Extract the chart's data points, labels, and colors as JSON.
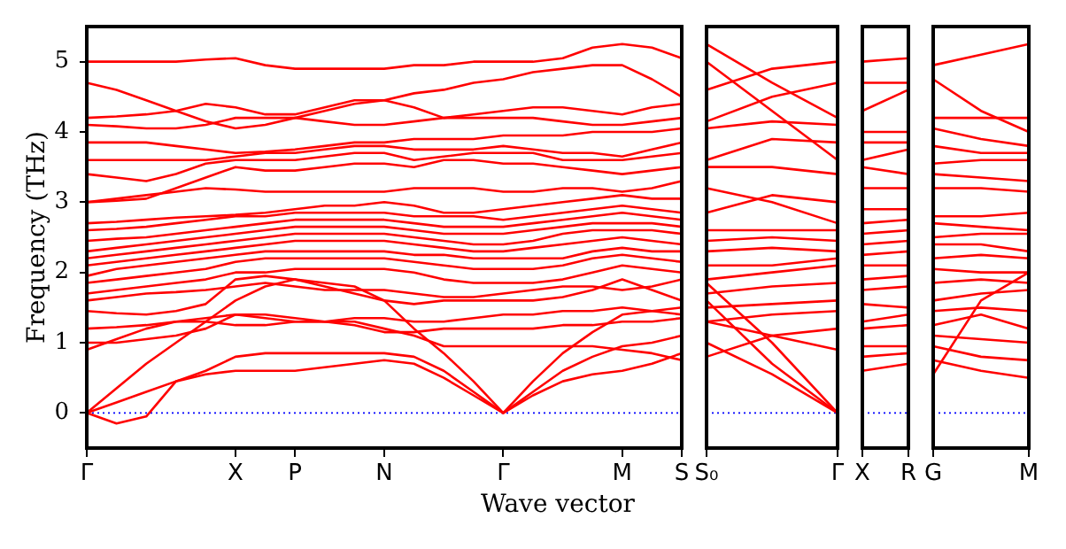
{
  "chart_data": [
    {
      "type": "line",
      "xlabel": "Wave vector",
      "ylabel": "Frequency (THz)",
      "marker": "none",
      "categories": [
        "Γ",
        null,
        null,
        null,
        null,
        "X",
        null,
        "P",
        null,
        null,
        "N",
        null,
        null,
        null,
        "Γ",
        null,
        null,
        null,
        "M",
        null,
        "S"
      ],
      "ylim": [
        -0.5,
        5.5
      ],
      "yticks": [
        0,
        1,
        2,
        3,
        4,
        5
      ],
      "ref_lines": [
        {
          "axis": "y",
          "value": 0,
          "color": "#0000ff",
          "line_style": "dotted"
        }
      ],
      "series": [
        {
          "color": "#ff0000",
          "values": [
            0,
            -0.15,
            -0.05,
            0.45,
            0.55,
            0.6,
            0.6,
            0.6,
            0.65,
            0.7,
            0.75,
            0.7,
            0.5,
            0.25,
            0,
            0.25,
            0.45,
            0.55,
            0.6,
            0.7,
            0.85
          ]
        },
        {
          "color": "#ff0000",
          "values": [
            0,
            0.15,
            0.3,
            0.45,
            0.6,
            0.8,
            0.85,
            0.85,
            0.85,
            0.85,
            0.85,
            0.8,
            0.6,
            0.3,
            0,
            0.3,
            0.6,
            0.8,
            0.95,
            1.0,
            1.1
          ]
        },
        {
          "color": "#ff0000",
          "values": [
            0,
            0.35,
            0.7,
            1.0,
            1.3,
            1.6,
            1.8,
            1.9,
            1.85,
            1.8,
            1.6,
            1.2,
            0.85,
            0.45,
            0,
            0.45,
            0.85,
            1.15,
            1.4,
            1.45,
            1.5
          ]
        },
        {
          "color": "#ff0000",
          "values": [
            0.9,
            1.05,
            1.2,
            1.3,
            1.3,
            1.25,
            1.25,
            1.3,
            1.3,
            1.3,
            1.2,
            1.1,
            0.95,
            0.95,
            0.95,
            0.95,
            0.95,
            0.95,
            0.9,
            0.85,
            0.75
          ]
        },
        {
          "color": "#ff0000",
          "values": [
            1.0,
            1.0,
            1.05,
            1.1,
            1.2,
            1.4,
            1.4,
            1.35,
            1.3,
            1.25,
            1.15,
            1.15,
            1.2,
            1.2,
            1.2,
            1.2,
            1.25,
            1.25,
            1.3,
            1.3,
            1.35
          ]
        },
        {
          "color": "#ff0000",
          "values": [
            1.2,
            1.22,
            1.25,
            1.3,
            1.35,
            1.4,
            1.35,
            1.3,
            1.3,
            1.35,
            1.35,
            1.3,
            1.3,
            1.35,
            1.4,
            1.4,
            1.45,
            1.45,
            1.5,
            1.45,
            1.4
          ]
        },
        {
          "color": "#ff0000",
          "values": [
            1.45,
            1.42,
            1.4,
            1.45,
            1.55,
            1.9,
            1.95,
            1.9,
            1.8,
            1.7,
            1.6,
            1.55,
            1.6,
            1.6,
            1.6,
            1.6,
            1.65,
            1.75,
            1.9,
            1.75,
            1.6
          ]
        },
        {
          "color": "#ff0000",
          "values": [
            1.6,
            1.65,
            1.7,
            1.72,
            1.75,
            1.8,
            1.85,
            1.8,
            1.75,
            1.75,
            1.75,
            1.7,
            1.65,
            1.65,
            1.7,
            1.75,
            1.8,
            1.8,
            1.75,
            1.8,
            1.9
          ]
        },
        {
          "color": "#ff0000",
          "values": [
            1.7,
            1.75,
            1.8,
            1.85,
            1.9,
            2.0,
            2.0,
            2.05,
            2.05,
            2.05,
            2.05,
            2.0,
            1.9,
            1.85,
            1.85,
            1.85,
            1.9,
            2.0,
            2.1,
            2.05,
            2.0
          ]
        },
        {
          "color": "#ff0000",
          "values": [
            1.85,
            1.9,
            1.95,
            2.0,
            2.05,
            2.15,
            2.2,
            2.2,
            2.2,
            2.2,
            2.2,
            2.15,
            2.1,
            2.05,
            2.05,
            2.05,
            2.1,
            2.2,
            2.25,
            2.2,
            2.15
          ]
        },
        {
          "color": "#ff0000",
          "values": [
            1.95,
            2.05,
            2.1,
            2.15,
            2.2,
            2.25,
            2.3,
            2.3,
            2.3,
            2.3,
            2.3,
            2.25,
            2.25,
            2.2,
            2.2,
            2.2,
            2.2,
            2.3,
            2.35,
            2.3,
            2.3
          ]
        },
        {
          "color": "#ff0000",
          "values": [
            2.1,
            2.15,
            2.2,
            2.25,
            2.3,
            2.35,
            2.4,
            2.45,
            2.45,
            2.45,
            2.45,
            2.4,
            2.35,
            2.3,
            2.3,
            2.35,
            2.4,
            2.45,
            2.5,
            2.45,
            2.4
          ]
        },
        {
          "color": "#ff0000",
          "values": [
            2.2,
            2.25,
            2.3,
            2.35,
            2.4,
            2.45,
            2.5,
            2.55,
            2.55,
            2.55,
            2.55,
            2.5,
            2.45,
            2.4,
            2.4,
            2.45,
            2.55,
            2.6,
            2.6,
            2.6,
            2.55
          ]
        },
        {
          "color": "#ff0000",
          "values": [
            2.3,
            2.35,
            2.4,
            2.45,
            2.5,
            2.55,
            2.6,
            2.65,
            2.65,
            2.65,
            2.65,
            2.6,
            2.55,
            2.55,
            2.55,
            2.6,
            2.65,
            2.7,
            2.7,
            2.7,
            2.65
          ]
        },
        {
          "color": "#ff0000",
          "values": [
            2.45,
            2.48,
            2.5,
            2.55,
            2.6,
            2.65,
            2.7,
            2.75,
            2.75,
            2.75,
            2.75,
            2.7,
            2.65,
            2.65,
            2.65,
            2.7,
            2.75,
            2.8,
            2.85,
            2.8,
            2.75
          ]
        },
        {
          "color": "#ff0000",
          "values": [
            2.6,
            2.62,
            2.65,
            2.7,
            2.75,
            2.8,
            2.8,
            2.85,
            2.85,
            2.85,
            2.85,
            2.8,
            2.8,
            2.8,
            2.75,
            2.8,
            2.85,
            2.9,
            2.95,
            2.9,
            2.85
          ]
        },
        {
          "color": "#ff0000",
          "values": [
            2.7,
            2.72,
            2.75,
            2.78,
            2.8,
            2.82,
            2.85,
            2.9,
            2.95,
            2.95,
            3.0,
            2.95,
            2.85,
            2.85,
            2.9,
            2.95,
            3.0,
            3.05,
            3.1,
            3.05,
            3.05
          ]
        },
        {
          "color": "#ff0000",
          "values": [
            3.0,
            3.05,
            3.1,
            3.15,
            3.2,
            3.18,
            3.15,
            3.15,
            3.15,
            3.15,
            3.15,
            3.2,
            3.2,
            3.2,
            3.15,
            3.15,
            3.2,
            3.2,
            3.15,
            3.2,
            3.3
          ]
        },
        {
          "color": "#ff0000",
          "values": [
            3.0,
            3.02,
            3.05,
            3.2,
            3.35,
            3.5,
            3.45,
            3.45,
            3.5,
            3.55,
            3.55,
            3.5,
            3.6,
            3.6,
            3.55,
            3.55,
            3.5,
            3.45,
            3.4,
            3.45,
            3.5
          ]
        },
        {
          "color": "#ff0000",
          "values": [
            3.4,
            3.35,
            3.3,
            3.4,
            3.55,
            3.6,
            3.6,
            3.6,
            3.65,
            3.7,
            3.7,
            3.6,
            3.65,
            3.7,
            3.7,
            3.7,
            3.6,
            3.6,
            3.6,
            3.65,
            3.7
          ]
        },
        {
          "color": "#ff0000",
          "values": [
            3.6,
            3.6,
            3.6,
            3.6,
            3.6,
            3.65,
            3.7,
            3.7,
            3.75,
            3.8,
            3.8,
            3.75,
            3.75,
            3.75,
            3.8,
            3.75,
            3.7,
            3.7,
            3.65,
            3.75,
            3.85
          ]
        },
        {
          "color": "#ff0000",
          "values": [
            3.85,
            3.85,
            3.85,
            3.8,
            3.75,
            3.7,
            3.72,
            3.75,
            3.8,
            3.85,
            3.85,
            3.9,
            3.9,
            3.9,
            3.95,
            3.95,
            3.95,
            4.0,
            4.0,
            4.0,
            4.05
          ]
        },
        {
          "color": "#ff0000",
          "values": [
            4.1,
            4.08,
            4.05,
            4.05,
            4.1,
            4.2,
            4.2,
            4.2,
            4.15,
            4.1,
            4.1,
            4.15,
            4.2,
            4.2,
            4.2,
            4.2,
            4.15,
            4.1,
            4.1,
            4.15,
            4.2
          ]
        },
        {
          "color": "#ff0000",
          "values": [
            4.2,
            4.22,
            4.25,
            4.3,
            4.4,
            4.35,
            4.25,
            4.25,
            4.35,
            4.45,
            4.45,
            4.35,
            4.2,
            4.25,
            4.3,
            4.35,
            4.35,
            4.3,
            4.25,
            4.35,
            4.4
          ]
        },
        {
          "color": "#ff0000",
          "values": [
            4.7,
            4.6,
            4.45,
            4.3,
            4.15,
            4.05,
            4.1,
            4.2,
            4.3,
            4.4,
            4.45,
            4.55,
            4.6,
            4.7,
            4.75,
            4.85,
            4.9,
            4.95,
            4.95,
            4.75,
            4.5
          ]
        },
        {
          "color": "#ff0000",
          "values": [
            5.0,
            5.0,
            5.0,
            5.0,
            5.03,
            5.05,
            4.95,
            4.9,
            4.9,
            4.9,
            4.9,
            4.95,
            4.95,
            5.0,
            5.0,
            5.0,
            5.05,
            5.2,
            5.25,
            5.2,
            5.05
          ]
        }
      ]
    },
    {
      "type": "line",
      "marker": "none",
      "tick_labels": "x",
      "categories": [
        "S₀",
        null,
        "Γ"
      ],
      "ylim": [
        -0.5,
        5.5
      ],
      "yticks": [
        0,
        1,
        2,
        3,
        4,
        5
      ],
      "ref_lines": [
        {
          "axis": "y",
          "value": 0,
          "color": "#0000ff",
          "line_style": "dotted"
        }
      ],
      "series": [
        {
          "color": "#ff0000",
          "values": [
            5.25,
            4.7,
            4.2
          ]
        },
        {
          "color": "#ff0000",
          "values": [
            5.0,
            4.3,
            3.6
          ]
        },
        {
          "color": "#ff0000",
          "values": [
            4.6,
            4.9,
            5.0
          ]
        },
        {
          "color": "#ff0000",
          "values": [
            4.15,
            4.5,
            4.7
          ]
        },
        {
          "color": "#ff0000",
          "values": [
            4.05,
            4.15,
            4.1
          ]
        },
        {
          "color": "#ff0000",
          "values": [
            3.6,
            3.9,
            3.85
          ]
        },
        {
          "color": "#ff0000",
          "values": [
            3.5,
            3.5,
            3.4
          ]
        },
        {
          "color": "#ff0000",
          "values": [
            3.2,
            3.0,
            2.7
          ]
        },
        {
          "color": "#ff0000",
          "values": [
            2.85,
            3.1,
            3.0
          ]
        },
        {
          "color": "#ff0000",
          "values": [
            2.6,
            2.6,
            2.6
          ]
        },
        {
          "color": "#ff0000",
          "values": [
            2.45,
            2.5,
            2.45
          ]
        },
        {
          "color": "#ff0000",
          "values": [
            2.3,
            2.35,
            2.3
          ]
        },
        {
          "color": "#ff0000",
          "values": [
            2.1,
            2.1,
            2.2
          ]
        },
        {
          "color": "#ff0000",
          "values": [
            1.9,
            2.0,
            2.1
          ]
        },
        {
          "color": "#ff0000",
          "values": [
            1.7,
            1.8,
            1.85
          ]
        },
        {
          "color": "#ff0000",
          "values": [
            1.5,
            1.55,
            1.6
          ]
        },
        {
          "color": "#ff0000",
          "values": [
            1.3,
            1.4,
            1.45
          ]
        },
        {
          "color": "#ff0000",
          "values": [
            1.3,
            1.1,
            1.2
          ]
        },
        {
          "color": "#ff0000",
          "values": [
            0.8,
            1.1,
            0.9
          ]
        },
        {
          "color": "#ff0000",
          "values": [
            1.0,
            0.55,
            0
          ]
        },
        {
          "color": "#ff0000",
          "values": [
            1.6,
            0.7,
            0
          ]
        },
        {
          "color": "#ff0000",
          "values": [
            1.85,
            1.0,
            0
          ]
        }
      ]
    },
    {
      "type": "line",
      "marker": "none",
      "tick_labels": "x",
      "categories": [
        "X",
        "R"
      ],
      "ylim": [
        -0.5,
        5.5
      ],
      "yticks": [
        0,
        1,
        2,
        3,
        4,
        5
      ],
      "ref_lines": [
        {
          "axis": "y",
          "value": 0,
          "color": "#0000ff",
          "line_style": "dotted"
        }
      ],
      "series": [
        {
          "color": "#ff0000",
          "values": [
            5.0,
            5.05
          ]
        },
        {
          "color": "#ff0000",
          "values": [
            4.7,
            4.7
          ]
        },
        {
          "color": "#ff0000",
          "values": [
            4.3,
            4.6
          ]
        },
        {
          "color": "#ff0000",
          "values": [
            4.0,
            4.0
          ]
        },
        {
          "color": "#ff0000",
          "values": [
            3.85,
            3.85
          ]
        },
        {
          "color": "#ff0000",
          "values": [
            3.6,
            3.75
          ]
        },
        {
          "color": "#ff0000",
          "values": [
            3.5,
            3.4
          ]
        },
        {
          "color": "#ff0000",
          "values": [
            3.2,
            3.2
          ]
        },
        {
          "color": "#ff0000",
          "values": [
            2.9,
            2.9
          ]
        },
        {
          "color": "#ff0000",
          "values": [
            2.7,
            2.75
          ]
        },
        {
          "color": "#ff0000",
          "values": [
            2.55,
            2.6
          ]
        },
        {
          "color": "#ff0000",
          "values": [
            2.4,
            2.45
          ]
        },
        {
          "color": "#ff0000",
          "values": [
            2.25,
            2.3
          ]
        },
        {
          "color": "#ff0000",
          "values": [
            2.1,
            2.1
          ]
        },
        {
          "color": "#ff0000",
          "values": [
            1.9,
            1.95
          ]
        },
        {
          "color": "#ff0000",
          "values": [
            1.75,
            1.8
          ]
        },
        {
          "color": "#ff0000",
          "values": [
            1.55,
            1.5
          ]
        },
        {
          "color": "#ff0000",
          "values": [
            1.3,
            1.4
          ]
        },
        {
          "color": "#ff0000",
          "values": [
            1.2,
            1.25
          ]
        },
        {
          "color": "#ff0000",
          "values": [
            0.95,
            0.95
          ]
        },
        {
          "color": "#ff0000",
          "values": [
            0.8,
            0.85
          ]
        },
        {
          "color": "#ff0000",
          "values": [
            0.6,
            0.7
          ]
        }
      ]
    },
    {
      "type": "line",
      "marker": "none",
      "tick_labels": "x",
      "categories": [
        "G",
        null,
        "M"
      ],
      "ylim": [
        -0.5,
        5.5
      ],
      "yticks": [
        0,
        1,
        2,
        3,
        4,
        5
      ],
      "ref_lines": [
        {
          "axis": "y",
          "value": 0,
          "color": "#0000ff",
          "line_style": "dotted"
        }
      ],
      "series": [
        {
          "color": "#ff0000",
          "values": [
            4.95,
            5.1,
            5.25
          ]
        },
        {
          "color": "#ff0000",
          "values": [
            4.75,
            4.3,
            4.0
          ]
        },
        {
          "color": "#ff0000",
          "values": [
            4.2,
            4.2,
            4.2
          ]
        },
        {
          "color": "#ff0000",
          "values": [
            4.05,
            3.9,
            3.8
          ]
        },
        {
          "color": "#ff0000",
          "values": [
            3.8,
            3.7,
            3.7
          ]
        },
        {
          "color": "#ff0000",
          "values": [
            3.55,
            3.6,
            3.6
          ]
        },
        {
          "color": "#ff0000",
          "values": [
            3.4,
            3.35,
            3.3
          ]
        },
        {
          "color": "#ff0000",
          "values": [
            3.2,
            3.2,
            3.15
          ]
        },
        {
          "color": "#ff0000",
          "values": [
            2.8,
            2.8,
            2.85
          ]
        },
        {
          "color": "#ff0000",
          "values": [
            2.7,
            2.65,
            2.6
          ]
        },
        {
          "color": "#ff0000",
          "values": [
            2.5,
            2.55,
            2.55
          ]
        },
        {
          "color": "#ff0000",
          "values": [
            2.4,
            2.4,
            2.3
          ]
        },
        {
          "color": "#ff0000",
          "values": [
            2.2,
            2.25,
            2.2
          ]
        },
        {
          "color": "#ff0000",
          "values": [
            2.05,
            2.0,
            2.0
          ]
        },
        {
          "color": "#ff0000",
          "values": [
            1.85,
            1.9,
            1.85
          ]
        },
        {
          "color": "#ff0000",
          "values": [
            1.6,
            1.7,
            1.75
          ]
        },
        {
          "color": "#ff0000",
          "values": [
            1.45,
            1.5,
            1.45
          ]
        },
        {
          "color": "#ff0000",
          "values": [
            1.25,
            1.4,
            1.2
          ]
        },
        {
          "color": "#ff0000",
          "values": [
            1.1,
            1.05,
            1.0
          ]
        },
        {
          "color": "#ff0000",
          "values": [
            0.95,
            0.8,
            0.75
          ]
        },
        {
          "color": "#ff0000",
          "values": [
            0.75,
            0.6,
            0.5
          ]
        },
        {
          "color": "#ff0000",
          "values": [
            0.55,
            1.6,
            2.0
          ]
        }
      ]
    }
  ]
}
